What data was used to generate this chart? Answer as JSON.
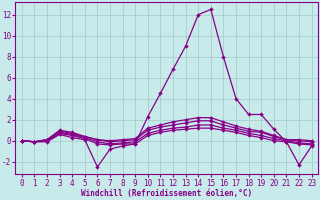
{
  "xlabel": "Windchill (Refroidissement éolien,°C)",
  "bg_color": "#c8eaea",
  "grid_color": "#aad4d4",
  "line_color": "#880088",
  "xlim": [
    -0.5,
    23.5
  ],
  "ylim": [
    -3.2,
    13.2
  ],
  "xticks": [
    0,
    1,
    2,
    3,
    4,
    5,
    6,
    7,
    8,
    9,
    10,
    11,
    12,
    13,
    14,
    15,
    16,
    17,
    18,
    19,
    20,
    21,
    22,
    23
  ],
  "yticks": [
    -2,
    0,
    2,
    4,
    6,
    8,
    10,
    12
  ],
  "lines": [
    [
      0.0,
      -0.1,
      -0.1,
      0.6,
      0.3,
      0.1,
      -2.5,
      -0.8,
      -0.5,
      -0.3,
      2.3,
      4.5,
      6.8,
      9.0,
      12.0,
      12.5,
      8.0,
      4.0,
      2.5,
      2.5,
      1.1,
      -0.1,
      -2.3,
      -0.5
    ],
    [
      0.0,
      -0.1,
      0.0,
      0.7,
      0.5,
      0.2,
      -0.3,
      -0.4,
      -0.3,
      -0.3,
      0.5,
      0.8,
      1.0,
      1.1,
      1.2,
      1.2,
      1.0,
      0.8,
      0.5,
      0.3,
      0.0,
      -0.1,
      -0.3,
      -0.4
    ],
    [
      0.0,
      -0.1,
      0.1,
      0.8,
      0.6,
      0.3,
      -0.1,
      -0.3,
      -0.2,
      -0.1,
      0.7,
      1.0,
      1.2,
      1.3,
      1.5,
      1.5,
      1.2,
      1.0,
      0.7,
      0.5,
      0.2,
      0.0,
      -0.2,
      -0.3
    ],
    [
      0.0,
      -0.1,
      0.1,
      0.9,
      0.7,
      0.4,
      0.1,
      -0.1,
      0.0,
      0.1,
      1.0,
      1.3,
      1.5,
      1.7,
      1.9,
      1.9,
      1.5,
      1.2,
      0.9,
      0.8,
      0.4,
      0.1,
      0.0,
      -0.1
    ],
    [
      0.0,
      -0.1,
      0.1,
      1.0,
      0.8,
      0.4,
      0.1,
      0.0,
      0.1,
      0.2,
      1.2,
      1.5,
      1.8,
      2.0,
      2.2,
      2.2,
      1.8,
      1.4,
      1.1,
      0.9,
      0.5,
      0.1,
      0.1,
      0.0
    ]
  ],
  "tick_fontsize": 5.5,
  "xlabel_fontsize": 5.5
}
